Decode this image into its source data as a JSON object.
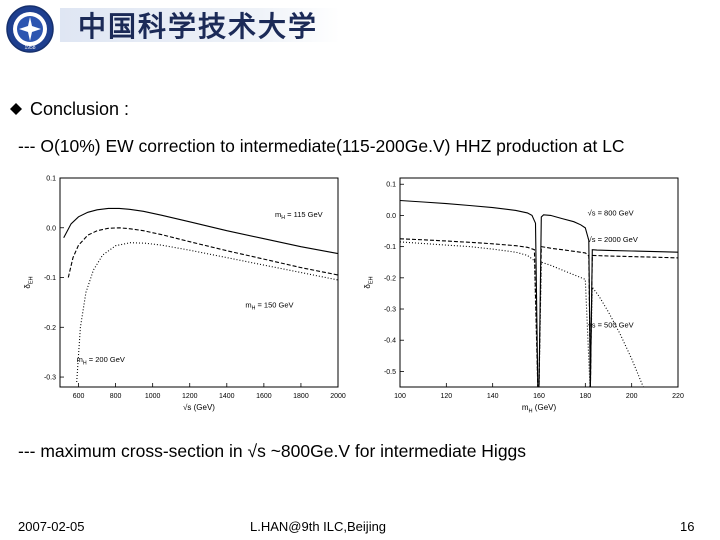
{
  "header": {
    "university_name": "中国科学技术大学",
    "logo_year": "1958",
    "logo_text": "中国科学技术大学"
  },
  "slide": {
    "bullet_heading": "Conclusion :",
    "line1": "--- O(10%) EW correction to intermediate(115-200Ge.V) HHZ production at LC",
    "line2": "--- maximum cross-section in √s ~800Ge.V for intermediate Higgs"
  },
  "footer": {
    "date": "2007-02-05",
    "center": "L.HAN@9th ILC,Beijing",
    "page": "16"
  },
  "chart_data": [
    {
      "type": "line",
      "xlabel": "√s (GeV)",
      "ylabel": "δ_EH",
      "xlim": [
        500,
        2000
      ],
      "ylim": [
        -0.32,
        0.1
      ],
      "xticks": [
        600,
        800,
        1000,
        1200,
        1400,
        1600,
        1800,
        2000
      ],
      "yticks": [
        0.1,
        0.0,
        -0.1,
        -0.2,
        -0.3
      ],
      "ytick_labels": [
        "0.1",
        "0.0",
        "-0.1",
        "-0.2",
        "-0.3"
      ],
      "annotations": [
        {
          "text": "m_H = 115 GeV",
          "x": 1660,
          "y": 0.022
        },
        {
          "text": "m_H = 150 GeV",
          "x": 1500,
          "y": -0.16
        },
        {
          "text": "m_H = 200 GeV",
          "x": 590,
          "y": -0.27
        }
      ],
      "series": [
        {
          "style": "solid",
          "x": [
            520,
            560,
            600,
            650,
            700,
            760,
            820,
            880,
            950,
            1050,
            1200,
            1400,
            1600,
            1800,
            2000
          ],
          "y": [
            -0.02,
            0.008,
            0.022,
            0.031,
            0.036,
            0.039,
            0.039,
            0.037,
            0.033,
            0.025,
            0.012,
            -0.006,
            -0.022,
            -0.038,
            -0.052
          ]
        },
        {
          "style": "dashed",
          "x": [
            545,
            570,
            600,
            650,
            700,
            760,
            820,
            880,
            950,
            1050,
            1200,
            1400,
            1600,
            1800,
            2000
          ],
          "y": [
            -0.1,
            -0.06,
            -0.035,
            -0.015,
            -0.006,
            -0.001,
            0.0,
            -0.002,
            -0.006,
            -0.014,
            -0.028,
            -0.046,
            -0.063,
            -0.08,
            -0.095
          ]
        },
        {
          "style": "dotted",
          "x": [
            590,
            610,
            640,
            680,
            730,
            800,
            880,
            960,
            1050,
            1200,
            1400,
            1600,
            1800,
            2000
          ],
          "y": [
            -0.31,
            -0.2,
            -0.13,
            -0.085,
            -0.055,
            -0.036,
            -0.03,
            -0.031,
            -0.035,
            -0.045,
            -0.06,
            -0.075,
            -0.09,
            -0.105
          ]
        }
      ]
    },
    {
      "type": "line",
      "xlabel": "m_H (GeV)",
      "ylabel": "δ_EH",
      "xlim": [
        100,
        220
      ],
      "ylim": [
        -0.55,
        0.12
      ],
      "xticks": [
        100,
        120,
        140,
        160,
        180,
        200,
        220
      ],
      "yticks": [
        0.1,
        0.0,
        -0.1,
        -0.2,
        -0.3,
        -0.4,
        -0.5
      ],
      "ytick_labels": [
        "0.1",
        "0.0",
        "-0.1",
        "-0.2",
        "-0.3",
        "-0.4",
        "-0.5"
      ],
      "annotations": [
        {
          "text": "√s = 800 GeV",
          "x": 181,
          "y": 0.0
        },
        {
          "text": "√s = 2000 GeV",
          "x": 181,
          "y": -0.085
        },
        {
          "text": "√s = 500 GeV",
          "x": 181,
          "y": -0.36
        }
      ],
      "series": [
        {
          "style": "solid",
          "x": [
            100,
            110,
            120,
            130,
            140,
            150,
            155,
            157,
            158.5,
            159.5,
            160,
            161,
            162,
            165,
            170,
            175,
            178,
            180,
            181.5,
            182.2,
            183,
            185,
            190,
            200,
            210,
            220
          ],
          "y": [
            0.048,
            0.043,
            0.038,
            0.032,
            0.025,
            0.016,
            0.008,
            0.0,
            -0.025,
            -0.55,
            -0.55,
            -0.005,
            0.002,
            0.0,
            -0.01,
            -0.02,
            -0.03,
            -0.04,
            -0.08,
            -0.55,
            -0.11,
            -0.111,
            -0.112,
            -0.114,
            -0.116,
            -0.118
          ]
        },
        {
          "style": "dashed",
          "x": [
            100,
            110,
            120,
            130,
            140,
            150,
            155,
            158,
            159.5,
            160,
            161,
            165,
            170,
            175,
            180,
            181.5,
            182.2,
            183,
            190,
            200,
            210,
            220
          ],
          "y": [
            -0.075,
            -0.078,
            -0.082,
            -0.086,
            -0.091,
            -0.097,
            -0.102,
            -0.11,
            -0.55,
            -0.55,
            -0.1,
            -0.105,
            -0.11,
            -0.115,
            -0.12,
            -0.13,
            -0.55,
            -0.128,
            -0.13,
            -0.132,
            -0.134,
            -0.136
          ]
        },
        {
          "style": "dotted",
          "x": [
            100,
            110,
            120,
            130,
            140,
            150,
            155,
            158,
            159.5,
            160,
            161,
            165,
            170,
            175,
            180,
            182,
            183,
            186,
            190,
            195,
            200,
            205
          ],
          "y": [
            -0.085,
            -0.09,
            -0.095,
            -0.1,
            -0.108,
            -0.118,
            -0.128,
            -0.145,
            -0.55,
            -0.55,
            -0.15,
            -0.16,
            -0.175,
            -0.19,
            -0.205,
            -0.55,
            -0.23,
            -0.26,
            -0.31,
            -0.38,
            -0.46,
            -0.55
          ]
        }
      ]
    }
  ]
}
